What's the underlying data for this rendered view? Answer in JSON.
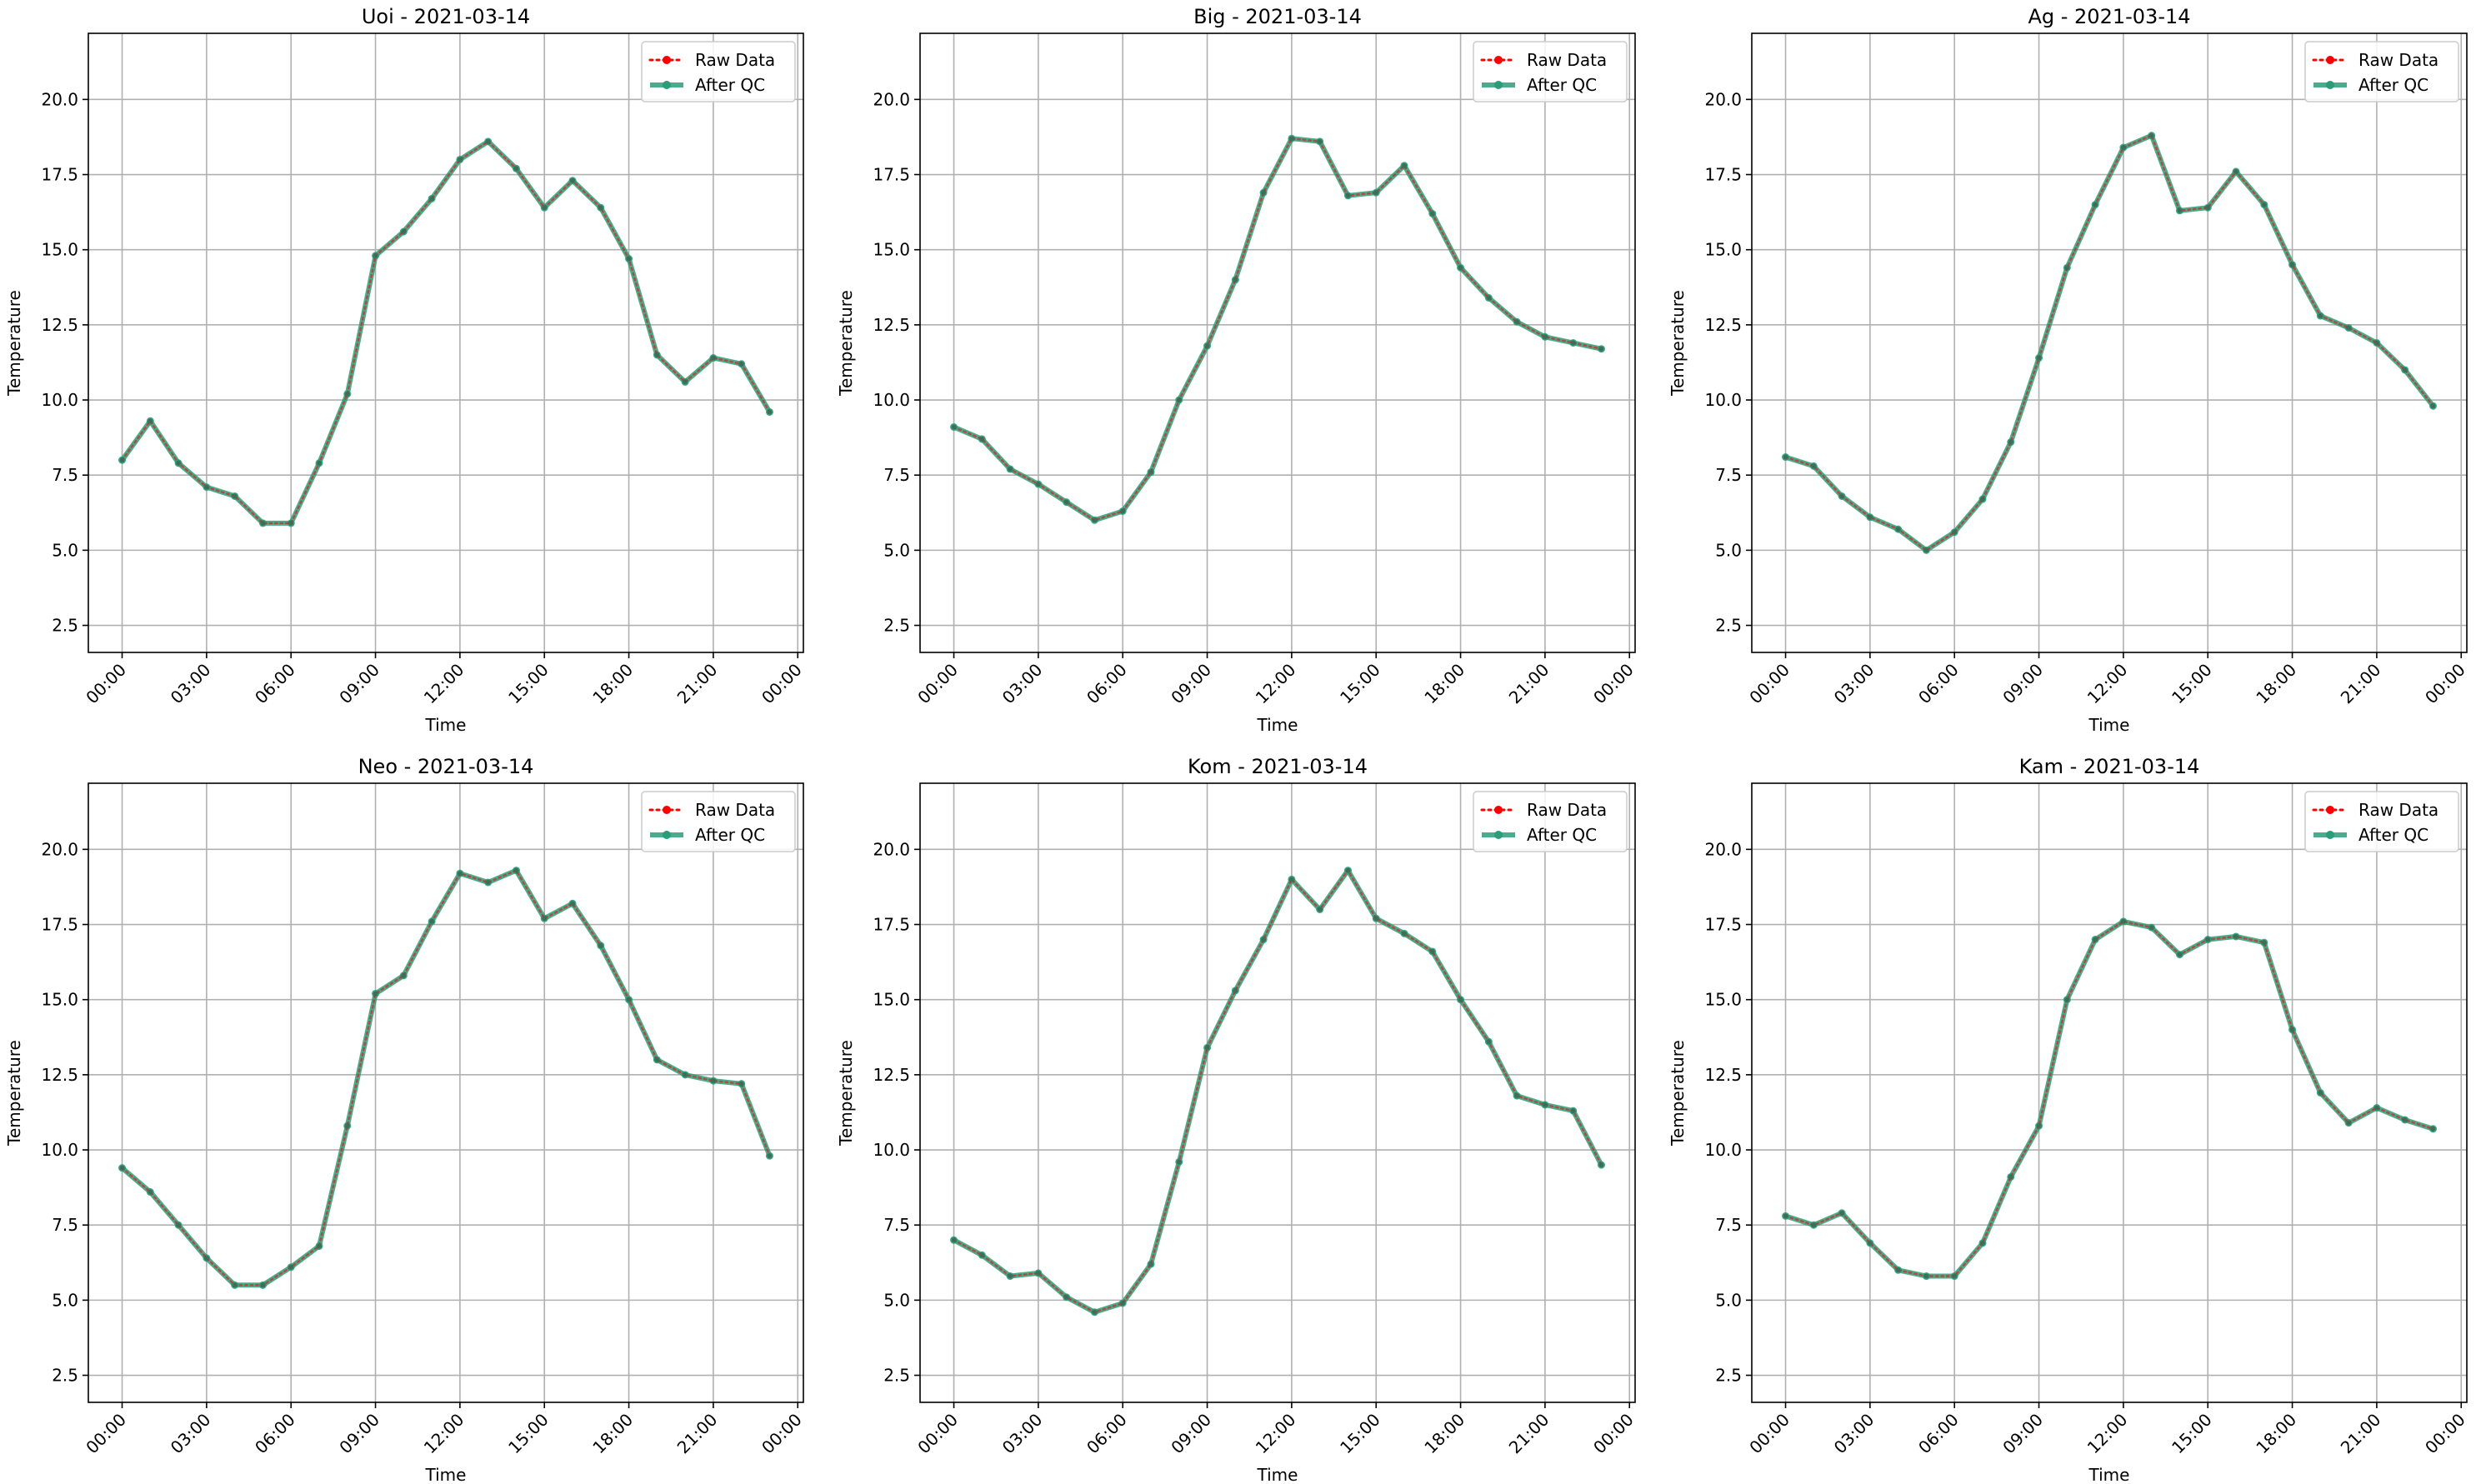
{
  "chart_data": [
    {
      "type": "line",
      "title": "Uoi - 2021-03-14",
      "xlabel": "Time",
      "ylabel": "Temperature",
      "x_tick_labels": [
        "00:00",
        "03:00",
        "06:00",
        "09:00",
        "12:00",
        "15:00",
        "18:00",
        "21:00",
        "00:00"
      ],
      "y_tick_labels": [
        "2.5",
        "5.0",
        "7.5",
        "10.0",
        "12.5",
        "15.0",
        "17.5",
        "20.0"
      ],
      "ylim": [
        1.6,
        22.2
      ],
      "xlim_hours": [
        -1.2,
        24.2
      ],
      "grid": true,
      "legend_position": "top-right",
      "x_hours": [
        0,
        1,
        2,
        3,
        4,
        5,
        6,
        7,
        8,
        9,
        10,
        11,
        12,
        13,
        14,
        15,
        16,
        17,
        18,
        19,
        20,
        21,
        22,
        23
      ],
      "series": [
        {
          "name": "Raw Data",
          "color": "#ff0000",
          "style": "dotted",
          "values": [
            8.0,
            9.3,
            7.9,
            7.1,
            6.8,
            5.9,
            5.9,
            7.9,
            10.2,
            14.8,
            15.6,
            16.7,
            18.0,
            18.6,
            17.7,
            16.4,
            17.3,
            16.4,
            14.7,
            11.5,
            10.6,
            11.4,
            11.2,
            9.6
          ]
        },
        {
          "name": "After QC",
          "color": "#2a9d78",
          "style": "solid",
          "values": [
            8.0,
            9.3,
            7.9,
            7.1,
            6.8,
            5.9,
            5.9,
            7.9,
            10.2,
            14.8,
            15.6,
            16.7,
            18.0,
            18.6,
            17.7,
            16.4,
            17.3,
            16.4,
            14.7,
            11.5,
            10.6,
            11.4,
            11.2,
            9.6
          ]
        }
      ]
    },
    {
      "type": "line",
      "title": "Big - 2021-03-14",
      "xlabel": "Time",
      "ylabel": "Temperature",
      "x_tick_labels": [
        "00:00",
        "03:00",
        "06:00",
        "09:00",
        "12:00",
        "15:00",
        "18:00",
        "21:00",
        "00:00"
      ],
      "y_tick_labels": [
        "2.5",
        "5.0",
        "7.5",
        "10.0",
        "12.5",
        "15.0",
        "17.5",
        "20.0"
      ],
      "ylim": [
        1.6,
        22.2
      ],
      "xlim_hours": [
        -1.2,
        24.2
      ],
      "grid": true,
      "legend_position": "top-right",
      "x_hours": [
        0,
        1,
        2,
        3,
        4,
        5,
        6,
        7,
        8,
        9,
        10,
        11,
        12,
        13,
        14,
        15,
        16,
        17,
        18,
        19,
        20,
        21,
        22,
        23
      ],
      "series": [
        {
          "name": "Raw Data",
          "color": "#ff0000",
          "style": "dotted",
          "values": [
            9.1,
            8.7,
            7.7,
            7.2,
            6.6,
            6.0,
            6.3,
            7.6,
            10.0,
            11.8,
            14.0,
            16.9,
            18.7,
            18.6,
            16.8,
            16.9,
            17.8,
            16.2,
            14.4,
            13.4,
            12.6,
            12.1,
            11.9,
            11.7
          ]
        },
        {
          "name": "After QC",
          "color": "#2a9d78",
          "style": "solid",
          "values": [
            9.1,
            8.7,
            7.7,
            7.2,
            6.6,
            6.0,
            6.3,
            7.6,
            10.0,
            11.8,
            14.0,
            16.9,
            18.7,
            18.6,
            16.8,
            16.9,
            17.8,
            16.2,
            14.4,
            13.4,
            12.6,
            12.1,
            11.9,
            11.7
          ]
        }
      ]
    },
    {
      "type": "line",
      "title": "Ag - 2021-03-14",
      "xlabel": "Time",
      "ylabel": "Temperature",
      "x_tick_labels": [
        "00:00",
        "03:00",
        "06:00",
        "09:00",
        "12:00",
        "15:00",
        "18:00",
        "21:00",
        "00:00"
      ],
      "y_tick_labels": [
        "2.5",
        "5.0",
        "7.5",
        "10.0",
        "12.5",
        "15.0",
        "17.5",
        "20.0"
      ],
      "ylim": [
        1.6,
        22.2
      ],
      "xlim_hours": [
        -1.2,
        24.2
      ],
      "grid": true,
      "legend_position": "top-right",
      "x_hours": [
        0,
        1,
        2,
        3,
        4,
        5,
        6,
        7,
        8,
        9,
        10,
        11,
        12,
        13,
        14,
        15,
        16,
        17,
        18,
        19,
        20,
        21,
        22,
        23
      ],
      "series": [
        {
          "name": "Raw Data",
          "color": "#ff0000",
          "style": "dotted",
          "values": [
            8.1,
            7.8,
            6.8,
            6.1,
            5.7,
            5.0,
            5.6,
            6.7,
            8.6,
            11.4,
            14.4,
            16.5,
            18.4,
            18.8,
            16.3,
            16.4,
            17.6,
            16.5,
            14.5,
            12.8,
            12.4,
            11.9,
            11.0,
            9.8
          ]
        },
        {
          "name": "After QC",
          "color": "#2a9d78",
          "style": "solid",
          "values": [
            8.1,
            7.8,
            6.8,
            6.1,
            5.7,
            5.0,
            5.6,
            6.7,
            8.6,
            11.4,
            14.4,
            16.5,
            18.4,
            18.8,
            16.3,
            16.4,
            17.6,
            16.5,
            14.5,
            12.8,
            12.4,
            11.9,
            11.0,
            9.8
          ]
        }
      ]
    },
    {
      "type": "line",
      "title": "Neo - 2021-03-14",
      "xlabel": "Time",
      "ylabel": "Temperature",
      "x_tick_labels": [
        "00:00",
        "03:00",
        "06:00",
        "09:00",
        "12:00",
        "15:00",
        "18:00",
        "21:00",
        "00:00"
      ],
      "y_tick_labels": [
        "2.5",
        "5.0",
        "7.5",
        "10.0",
        "12.5",
        "15.0",
        "17.5",
        "20.0"
      ],
      "ylim": [
        1.6,
        22.2
      ],
      "xlim_hours": [
        -1.2,
        24.2
      ],
      "grid": true,
      "legend_position": "top-right",
      "x_hours": [
        0,
        1,
        2,
        3,
        4,
        5,
        6,
        7,
        8,
        9,
        10,
        11,
        12,
        13,
        14,
        15,
        16,
        17,
        18,
        19,
        20,
        21,
        22,
        23
      ],
      "series": [
        {
          "name": "Raw Data",
          "color": "#ff0000",
          "style": "dotted",
          "values": [
            9.4,
            8.6,
            7.5,
            6.4,
            5.5,
            5.5,
            6.1,
            6.8,
            10.8,
            15.2,
            15.8,
            17.6,
            19.2,
            18.9,
            19.3,
            17.7,
            18.2,
            16.8,
            15.0,
            13.0,
            12.5,
            12.3,
            12.2,
            9.8
          ]
        },
        {
          "name": "After QC",
          "color": "#2a9d78",
          "style": "solid",
          "values": [
            9.4,
            8.6,
            7.5,
            6.4,
            5.5,
            5.5,
            6.1,
            6.8,
            10.8,
            15.2,
            15.8,
            17.6,
            19.2,
            18.9,
            19.3,
            17.7,
            18.2,
            16.8,
            15.0,
            13.0,
            12.5,
            12.3,
            12.2,
            9.8
          ]
        }
      ]
    },
    {
      "type": "line",
      "title": "Kom - 2021-03-14",
      "xlabel": "Time",
      "ylabel": "Temperature",
      "x_tick_labels": [
        "00:00",
        "03:00",
        "06:00",
        "09:00",
        "12:00",
        "15:00",
        "18:00",
        "21:00",
        "00:00"
      ],
      "y_tick_labels": [
        "2.5",
        "5.0",
        "7.5",
        "10.0",
        "12.5",
        "15.0",
        "17.5",
        "20.0"
      ],
      "ylim": [
        1.6,
        22.2
      ],
      "xlim_hours": [
        -1.2,
        24.2
      ],
      "grid": true,
      "legend_position": "top-right",
      "x_hours": [
        0,
        1,
        2,
        3,
        4,
        5,
        6,
        7,
        8,
        9,
        10,
        11,
        12,
        13,
        14,
        15,
        16,
        17,
        18,
        19,
        20,
        21,
        22,
        23
      ],
      "series": [
        {
          "name": "Raw Data",
          "color": "#ff0000",
          "style": "dotted",
          "values": [
            7.0,
            6.5,
            5.8,
            5.9,
            5.1,
            4.6,
            4.9,
            6.2,
            9.6,
            13.4,
            15.3,
            17.0,
            19.0,
            18.0,
            19.3,
            17.7,
            17.2,
            16.6,
            15.0,
            13.6,
            11.8,
            11.5,
            11.3,
            9.5
          ]
        },
        {
          "name": "After QC",
          "color": "#2a9d78",
          "style": "solid",
          "values": [
            7.0,
            6.5,
            5.8,
            5.9,
            5.1,
            4.6,
            4.9,
            6.2,
            9.6,
            13.4,
            15.3,
            17.0,
            19.0,
            18.0,
            19.3,
            17.7,
            17.2,
            16.6,
            15.0,
            13.6,
            11.8,
            11.5,
            11.3,
            9.5
          ]
        }
      ]
    },
    {
      "type": "line",
      "title": "Kam - 2021-03-14",
      "xlabel": "Time",
      "ylabel": "Temperature",
      "x_tick_labels": [
        "00:00",
        "03:00",
        "06:00",
        "09:00",
        "12:00",
        "15:00",
        "18:00",
        "21:00",
        "00:00"
      ],
      "y_tick_labels": [
        "2.5",
        "5.0",
        "7.5",
        "10.0",
        "12.5",
        "15.0",
        "17.5",
        "20.0"
      ],
      "ylim": [
        1.6,
        22.2
      ],
      "xlim_hours": [
        -1.2,
        24.2
      ],
      "grid": true,
      "legend_position": "top-right",
      "x_hours": [
        0,
        1,
        2,
        3,
        4,
        5,
        6,
        7,
        8,
        9,
        10,
        11,
        12,
        13,
        14,
        15,
        16,
        17,
        18,
        19,
        20,
        21,
        22,
        23
      ],
      "series": [
        {
          "name": "Raw Data",
          "color": "#ff0000",
          "style": "dotted",
          "values": [
            7.8,
            7.5,
            7.9,
            6.9,
            6.0,
            5.8,
            5.8,
            6.9,
            9.1,
            10.8,
            15.0,
            17.0,
            17.6,
            17.4,
            16.5,
            17.0,
            17.1,
            16.9,
            14.0,
            11.9,
            10.9,
            11.4,
            11.0,
            10.7
          ]
        },
        {
          "name": "After QC",
          "color": "#2a9d78",
          "style": "solid",
          "values": [
            7.8,
            7.5,
            7.9,
            6.9,
            6.0,
            5.8,
            5.8,
            6.9,
            9.1,
            10.8,
            15.0,
            17.0,
            17.6,
            17.4,
            16.5,
            17.0,
            17.1,
            16.9,
            14.0,
            11.9,
            10.9,
            11.4,
            11.0,
            10.7
          ]
        }
      ]
    }
  ]
}
